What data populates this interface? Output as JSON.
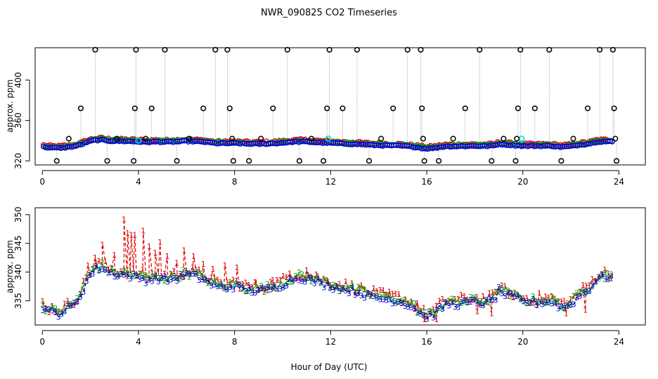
{
  "title": "NWR_090825  CO2 Timeseries",
  "xlabel": "Hour of Day (UTC)",
  "chart_data": [
    {
      "type": "scatter",
      "panel": "top",
      "ylabel": "approx. ppm",
      "xlim": [
        -0.3,
        25.1
      ],
      "ylim": [
        316,
        432
      ],
      "xticks": [
        0,
        4,
        8,
        12,
        16,
        20,
        24
      ],
      "yticks": [
        320,
        360,
        400
      ],
      "ytick_labels": [
        "320",
        "360",
        "400"
      ],
      "spike_levels": [
        320,
        342,
        372,
        430
      ],
      "spikes": [
        [
          0.6,
          320
        ],
        [
          1.1,
          342
        ],
        [
          1.6,
          372
        ],
        [
          2.2,
          430
        ],
        [
          2.7,
          320
        ],
        [
          3.1,
          342
        ],
        [
          3.8,
          320
        ],
        [
          3.85,
          372
        ],
        [
          3.9,
          430
        ],
        [
          4.3,
          342
        ],
        [
          4.55,
          372
        ],
        [
          5.1,
          430
        ],
        [
          5.6,
          320
        ],
        [
          6.1,
          342
        ],
        [
          6.7,
          372
        ],
        [
          7.2,
          430
        ],
        [
          7.7,
          430
        ],
        [
          7.8,
          372
        ],
        [
          7.9,
          342
        ],
        [
          7.95,
          320
        ],
        [
          8.6,
          320
        ],
        [
          9.1,
          342
        ],
        [
          9.6,
          372
        ],
        [
          10.2,
          430
        ],
        [
          10.7,
          320
        ],
        [
          11.2,
          342
        ],
        [
          11.7,
          320
        ],
        [
          11.85,
          372
        ],
        [
          11.95,
          430
        ],
        [
          12.5,
          372
        ],
        [
          13.1,
          430
        ],
        [
          13.6,
          320
        ],
        [
          14.1,
          342
        ],
        [
          14.6,
          372
        ],
        [
          15.2,
          430
        ],
        [
          15.75,
          430
        ],
        [
          15.8,
          372
        ],
        [
          15.85,
          342
        ],
        [
          15.9,
          320
        ],
        [
          16.5,
          320
        ],
        [
          17.1,
          342
        ],
        [
          17.6,
          372
        ],
        [
          18.2,
          430
        ],
        [
          18.7,
          320
        ],
        [
          19.2,
          342
        ],
        [
          19.7,
          320
        ],
        [
          19.75,
          342
        ],
        [
          19.8,
          372
        ],
        [
          19.9,
          430
        ],
        [
          20.5,
          372
        ],
        [
          21.1,
          430
        ],
        [
          21.6,
          320
        ],
        [
          22.1,
          342
        ],
        [
          22.7,
          372
        ],
        [
          23.2,
          430
        ],
        [
          23.75,
          430
        ],
        [
          23.8,
          372
        ],
        [
          23.85,
          342
        ],
        [
          23.9,
          320
        ]
      ],
      "cyan_points": [
        [
          4.0,
          340
        ],
        [
          11.9,
          342
        ],
        [
          19.95,
          342
        ]
      ],
      "series": [
        {
          "name": "1",
          "color": "#dd0000",
          "offset": 1.6,
          "jitter": 2.2
        },
        {
          "name": "2",
          "color": "#00aa00",
          "offset": 0.9,
          "jitter": 1.8
        },
        {
          "name": "3",
          "color": "#0000dd",
          "offset": 0.0,
          "jitter": 1.2
        }
      ]
    },
    {
      "type": "scatter",
      "panel": "bottom",
      "ylabel": "approx. ppm",
      "xlim": [
        -0.3,
        25.1
      ],
      "ylim": [
        330.8,
        351.2
      ],
      "xticks": [
        0,
        4,
        8,
        12,
        16,
        20,
        24
      ],
      "yticks": [
        335,
        340,
        345,
        350
      ],
      "ytick_labels": [
        "335",
        "340",
        "345",
        "350"
      ],
      "markers": [
        "1",
        "2",
        "3"
      ],
      "baseline": [
        [
          0.0,
          334.0
        ],
        [
          0.3,
          333.0
        ],
        [
          0.7,
          332.8
        ],
        [
          1.0,
          333.4
        ],
        [
          1.3,
          334.2
        ],
        [
          1.6,
          336.0
        ],
        [
          1.9,
          339.0
        ],
        [
          2.2,
          340.5
        ],
        [
          2.5,
          340.8
        ],
        [
          2.8,
          339.8
        ],
        [
          3.2,
          339.6
        ],
        [
          3.6,
          339.4
        ],
        [
          4.0,
          339.0
        ],
        [
          4.4,
          338.6
        ],
        [
          4.8,
          339.0
        ],
        [
          5.2,
          338.6
        ],
        [
          5.6,
          339.0
        ],
        [
          6.0,
          339.6
        ],
        [
          6.4,
          339.2
        ],
        [
          6.8,
          338.6
        ],
        [
          7.2,
          337.4
        ],
        [
          7.6,
          337.2
        ],
        [
          8.0,
          337.6
        ],
        [
          8.4,
          337.0
        ],
        [
          8.8,
          336.8
        ],
        [
          9.2,
          336.8
        ],
        [
          9.6,
          337.2
        ],
        [
          10.0,
          337.8
        ],
        [
          10.4,
          338.8
        ],
        [
          10.8,
          339.0
        ],
        [
          11.2,
          338.6
        ],
        [
          11.6,
          338.0
        ],
        [
          12.0,
          337.6
        ],
        [
          12.4,
          337.2
        ],
        [
          12.8,
          336.8
        ],
        [
          13.2,
          336.4
        ],
        [
          13.6,
          335.8
        ],
        [
          14.0,
          335.4
        ],
        [
          14.4,
          335.2
        ],
        [
          14.8,
          335.0
        ],
        [
          15.2,
          334.4
        ],
        [
          15.6,
          333.4
        ],
        [
          15.9,
          332.2
        ],
        [
          16.2,
          332.4
        ],
        [
          16.5,
          333.4
        ],
        [
          16.8,
          334.4
        ],
        [
          17.2,
          334.4
        ],
        [
          17.6,
          334.6
        ],
        [
          18.0,
          334.8
        ],
        [
          18.4,
          334.6
        ],
        [
          18.8,
          335.0
        ],
        [
          19.0,
          336.8
        ],
        [
          19.3,
          336.0
        ],
        [
          19.7,
          335.4
        ],
        [
          20.0,
          334.8
        ],
        [
          20.4,
          334.8
        ],
        [
          20.8,
          334.8
        ],
        [
          21.2,
          334.8
        ],
        [
          21.6,
          333.8
        ],
        [
          22.0,
          334.4
        ],
        [
          22.4,
          336.0
        ],
        [
          22.8,
          337.2
        ],
        [
          23.1,
          339.0
        ],
        [
          23.5,
          339.2
        ],
        [
          23.8,
          339.0
        ]
      ],
      "series": [
        {
          "name": "1",
          "color": "#dd0000",
          "offset": 0.7,
          "jitter": 0.9
        },
        {
          "name": "2",
          "color": "#00aa00",
          "offset": 0.35,
          "jitter": 0.7
        },
        {
          "name": "3",
          "color": "#0000cc",
          "offset": 0.0,
          "jitter": 0.6
        }
      ],
      "red_excursions": [
        [
          1.9,
          341.2
        ],
        [
          2.2,
          342.5
        ],
        [
          2.5,
          344.8
        ],
        [
          3.0,
          343.0
        ],
        [
          3.4,
          349.2
        ],
        [
          3.55,
          346.8
        ],
        [
          3.7,
          346.5
        ],
        [
          3.85,
          346.5
        ],
        [
          4.2,
          347.2
        ],
        [
          4.45,
          344.5
        ],
        [
          4.7,
          343.4
        ],
        [
          4.9,
          345.2
        ],
        [
          5.2,
          342.8
        ],
        [
          5.6,
          341.6
        ],
        [
          5.9,
          343.8
        ],
        [
          6.3,
          342.8
        ],
        [
          6.7,
          341.4
        ],
        [
          7.1,
          340.6
        ],
        [
          7.6,
          341.2
        ],
        [
          8.1,
          340.8
        ],
        [
          8.9,
          338.2
        ],
        [
          9.6,
          338.6
        ],
        [
          10.3,
          339.8
        ],
        [
          11.0,
          340.3
        ],
        [
          11.4,
          339.6
        ],
        [
          11.9,
          338.4
        ],
        [
          13.2,
          337.2
        ],
        [
          14.4,
          336.0
        ],
        [
          15.6,
          334.6
        ],
        [
          15.9,
          331.4
        ],
        [
          16.4,
          331.6
        ],
        [
          18.1,
          333.2
        ],
        [
          18.7,
          332.8
        ],
        [
          19.6,
          335.6
        ],
        [
          20.6,
          334.2
        ],
        [
          21.8,
          332.8
        ],
        [
          22.6,
          333.4
        ]
      ]
    }
  ]
}
